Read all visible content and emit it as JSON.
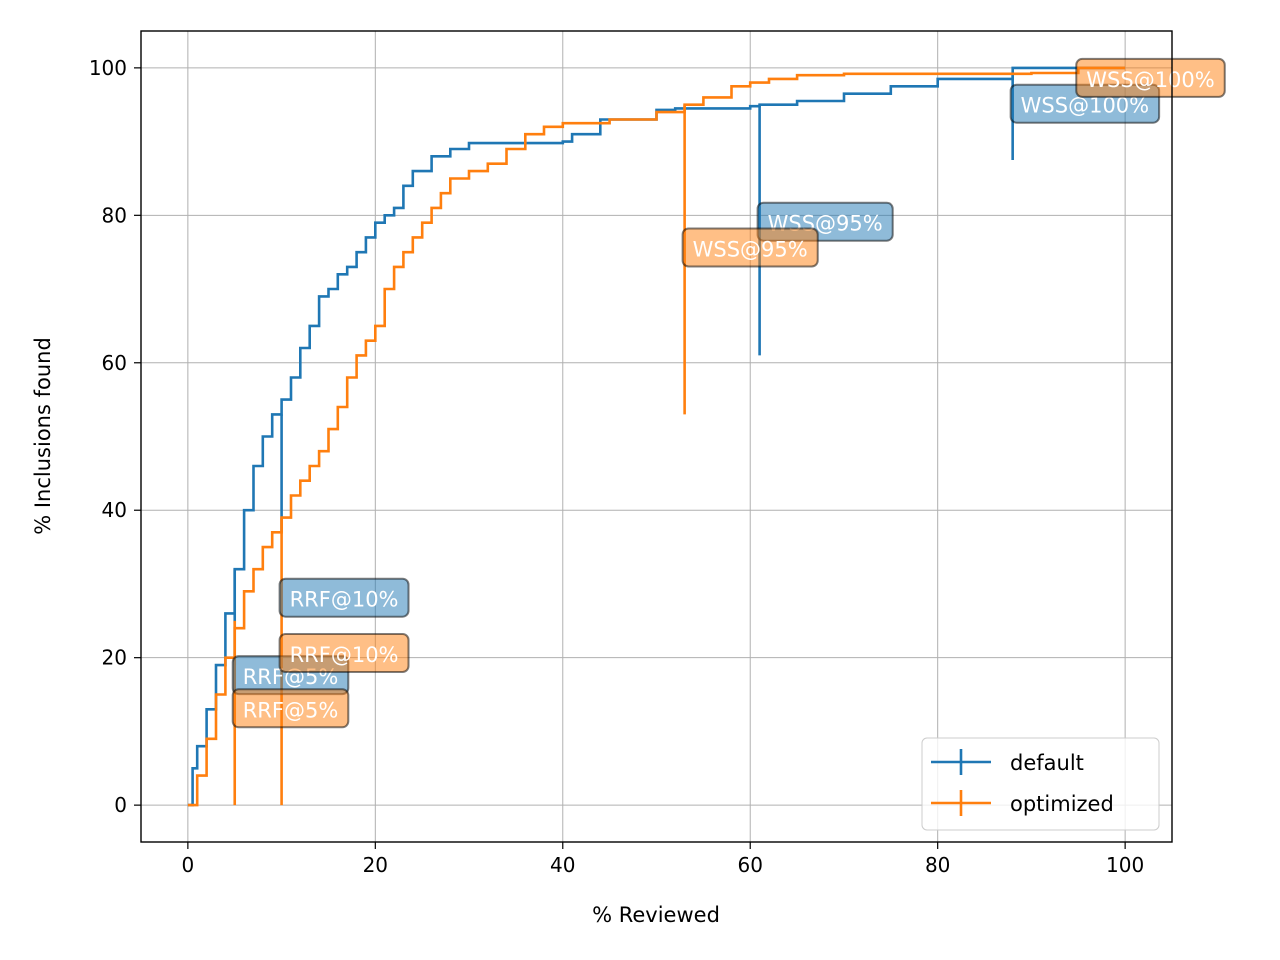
{
  "chart_data": {
    "type": "line",
    "xlabel": "% Reviewed",
    "ylabel": "% Inclusions found",
    "xlim": [
      -5,
      105
    ],
    "ylim": [
      -5,
      105
    ],
    "x_ticks": [
      0,
      20,
      40,
      60,
      80,
      100
    ],
    "y_ticks": [
      0,
      20,
      40,
      60,
      80,
      100
    ],
    "grid": true,
    "legend_position": "bottom-right",
    "series": [
      {
        "name": "default",
        "color": "#1f77b4",
        "points": [
          [
            0,
            0
          ],
          [
            0.5,
            5
          ],
          [
            1,
            8
          ],
          [
            2,
            13
          ],
          [
            3,
            19
          ],
          [
            4,
            26
          ],
          [
            5,
            32
          ],
          [
            6,
            40
          ],
          [
            7,
            46
          ],
          [
            8,
            50
          ],
          [
            9,
            53
          ],
          [
            10,
            55
          ],
          [
            11,
            58
          ],
          [
            12,
            62
          ],
          [
            13,
            65
          ],
          [
            14,
            69
          ],
          [
            15,
            70
          ],
          [
            16,
            72
          ],
          [
            17,
            73
          ],
          [
            18,
            75
          ],
          [
            19,
            77
          ],
          [
            20,
            79
          ],
          [
            21,
            80
          ],
          [
            22,
            81
          ],
          [
            23,
            84
          ],
          [
            24,
            86
          ],
          [
            26,
            88
          ],
          [
            28,
            89
          ],
          [
            30,
            89.8
          ],
          [
            40,
            90
          ],
          [
            41,
            91
          ],
          [
            44,
            93
          ],
          [
            50,
            94.3
          ],
          [
            52,
            94.5
          ],
          [
            60,
            94.8
          ],
          [
            61,
            95
          ],
          [
            65,
            95.5
          ],
          [
            70,
            96.5
          ],
          [
            75,
            97.5
          ],
          [
            80,
            98.5
          ],
          [
            86,
            98.5
          ],
          [
            88,
            100
          ],
          [
            100,
            100
          ]
        ],
        "errorbars": [
          {
            "x": 5,
            "low": 19,
            "high": 32
          },
          {
            "x": 10,
            "low": 37,
            "high": 53
          },
          {
            "x": 61,
            "low": 61,
            "high": 95
          },
          {
            "x": 88,
            "low": 87.5,
            "high": 99
          }
        ]
      },
      {
        "name": "optimized",
        "color": "#ff7f0e",
        "points": [
          [
            0,
            0
          ],
          [
            1,
            4
          ],
          [
            2,
            9
          ],
          [
            3,
            15
          ],
          [
            4,
            20
          ],
          [
            5,
            24
          ],
          [
            6,
            29
          ],
          [
            7,
            32
          ],
          [
            8,
            35
          ],
          [
            9,
            37
          ],
          [
            10,
            39
          ],
          [
            11,
            42
          ],
          [
            12,
            44
          ],
          [
            13,
            46
          ],
          [
            14,
            48
          ],
          [
            15,
            51
          ],
          [
            16,
            54
          ],
          [
            17,
            58
          ],
          [
            18,
            61
          ],
          [
            19,
            63
          ],
          [
            20,
            65
          ],
          [
            21,
            70
          ],
          [
            22,
            73
          ],
          [
            23,
            75
          ],
          [
            24,
            77
          ],
          [
            25,
            79
          ],
          [
            26,
            81
          ],
          [
            27,
            83
          ],
          [
            28,
            85
          ],
          [
            30,
            86
          ],
          [
            32,
            87
          ],
          [
            34,
            89
          ],
          [
            36,
            91
          ],
          [
            38,
            92
          ],
          [
            40,
            92.5
          ],
          [
            45,
            93
          ],
          [
            50,
            94
          ],
          [
            53,
            95
          ],
          [
            55,
            96
          ],
          [
            58,
            97.5
          ],
          [
            60,
            98
          ],
          [
            62,
            98.5
          ],
          [
            65,
            99
          ],
          [
            70,
            99.2
          ],
          [
            90,
            99.3
          ],
          [
            95,
            100
          ],
          [
            100,
            100
          ]
        ],
        "errorbars": [
          {
            "x": 5,
            "low": 0,
            "high": 25
          },
          {
            "x": 10,
            "low": 0,
            "high": 39
          },
          {
            "x": 53,
            "low": 53,
            "high": 95
          }
        ]
      }
    ],
    "annotations": [
      {
        "text": "RRF@5%",
        "x": 5,
        "y": 17.5,
        "series": "default"
      },
      {
        "text": "RRF@10%",
        "x": 10,
        "y": 28,
        "series": "default"
      },
      {
        "text": "WSS@95%",
        "x": 61,
        "y": 79,
        "series": "default"
      },
      {
        "text": "WSS@100%",
        "x": 88,
        "y": 95,
        "series": "default"
      },
      {
        "text": "RRF@5%",
        "x": 5,
        "y": 13,
        "series": "optimized"
      },
      {
        "text": "RRF@10%",
        "x": 10,
        "y": 20.5,
        "series": "optimized"
      },
      {
        "text": "WSS@95%",
        "x": 53,
        "y": 75.5,
        "series": "optimized"
      },
      {
        "text": "WSS@100%",
        "x": 95,
        "y": 98.5,
        "series": "optimized"
      }
    ]
  }
}
